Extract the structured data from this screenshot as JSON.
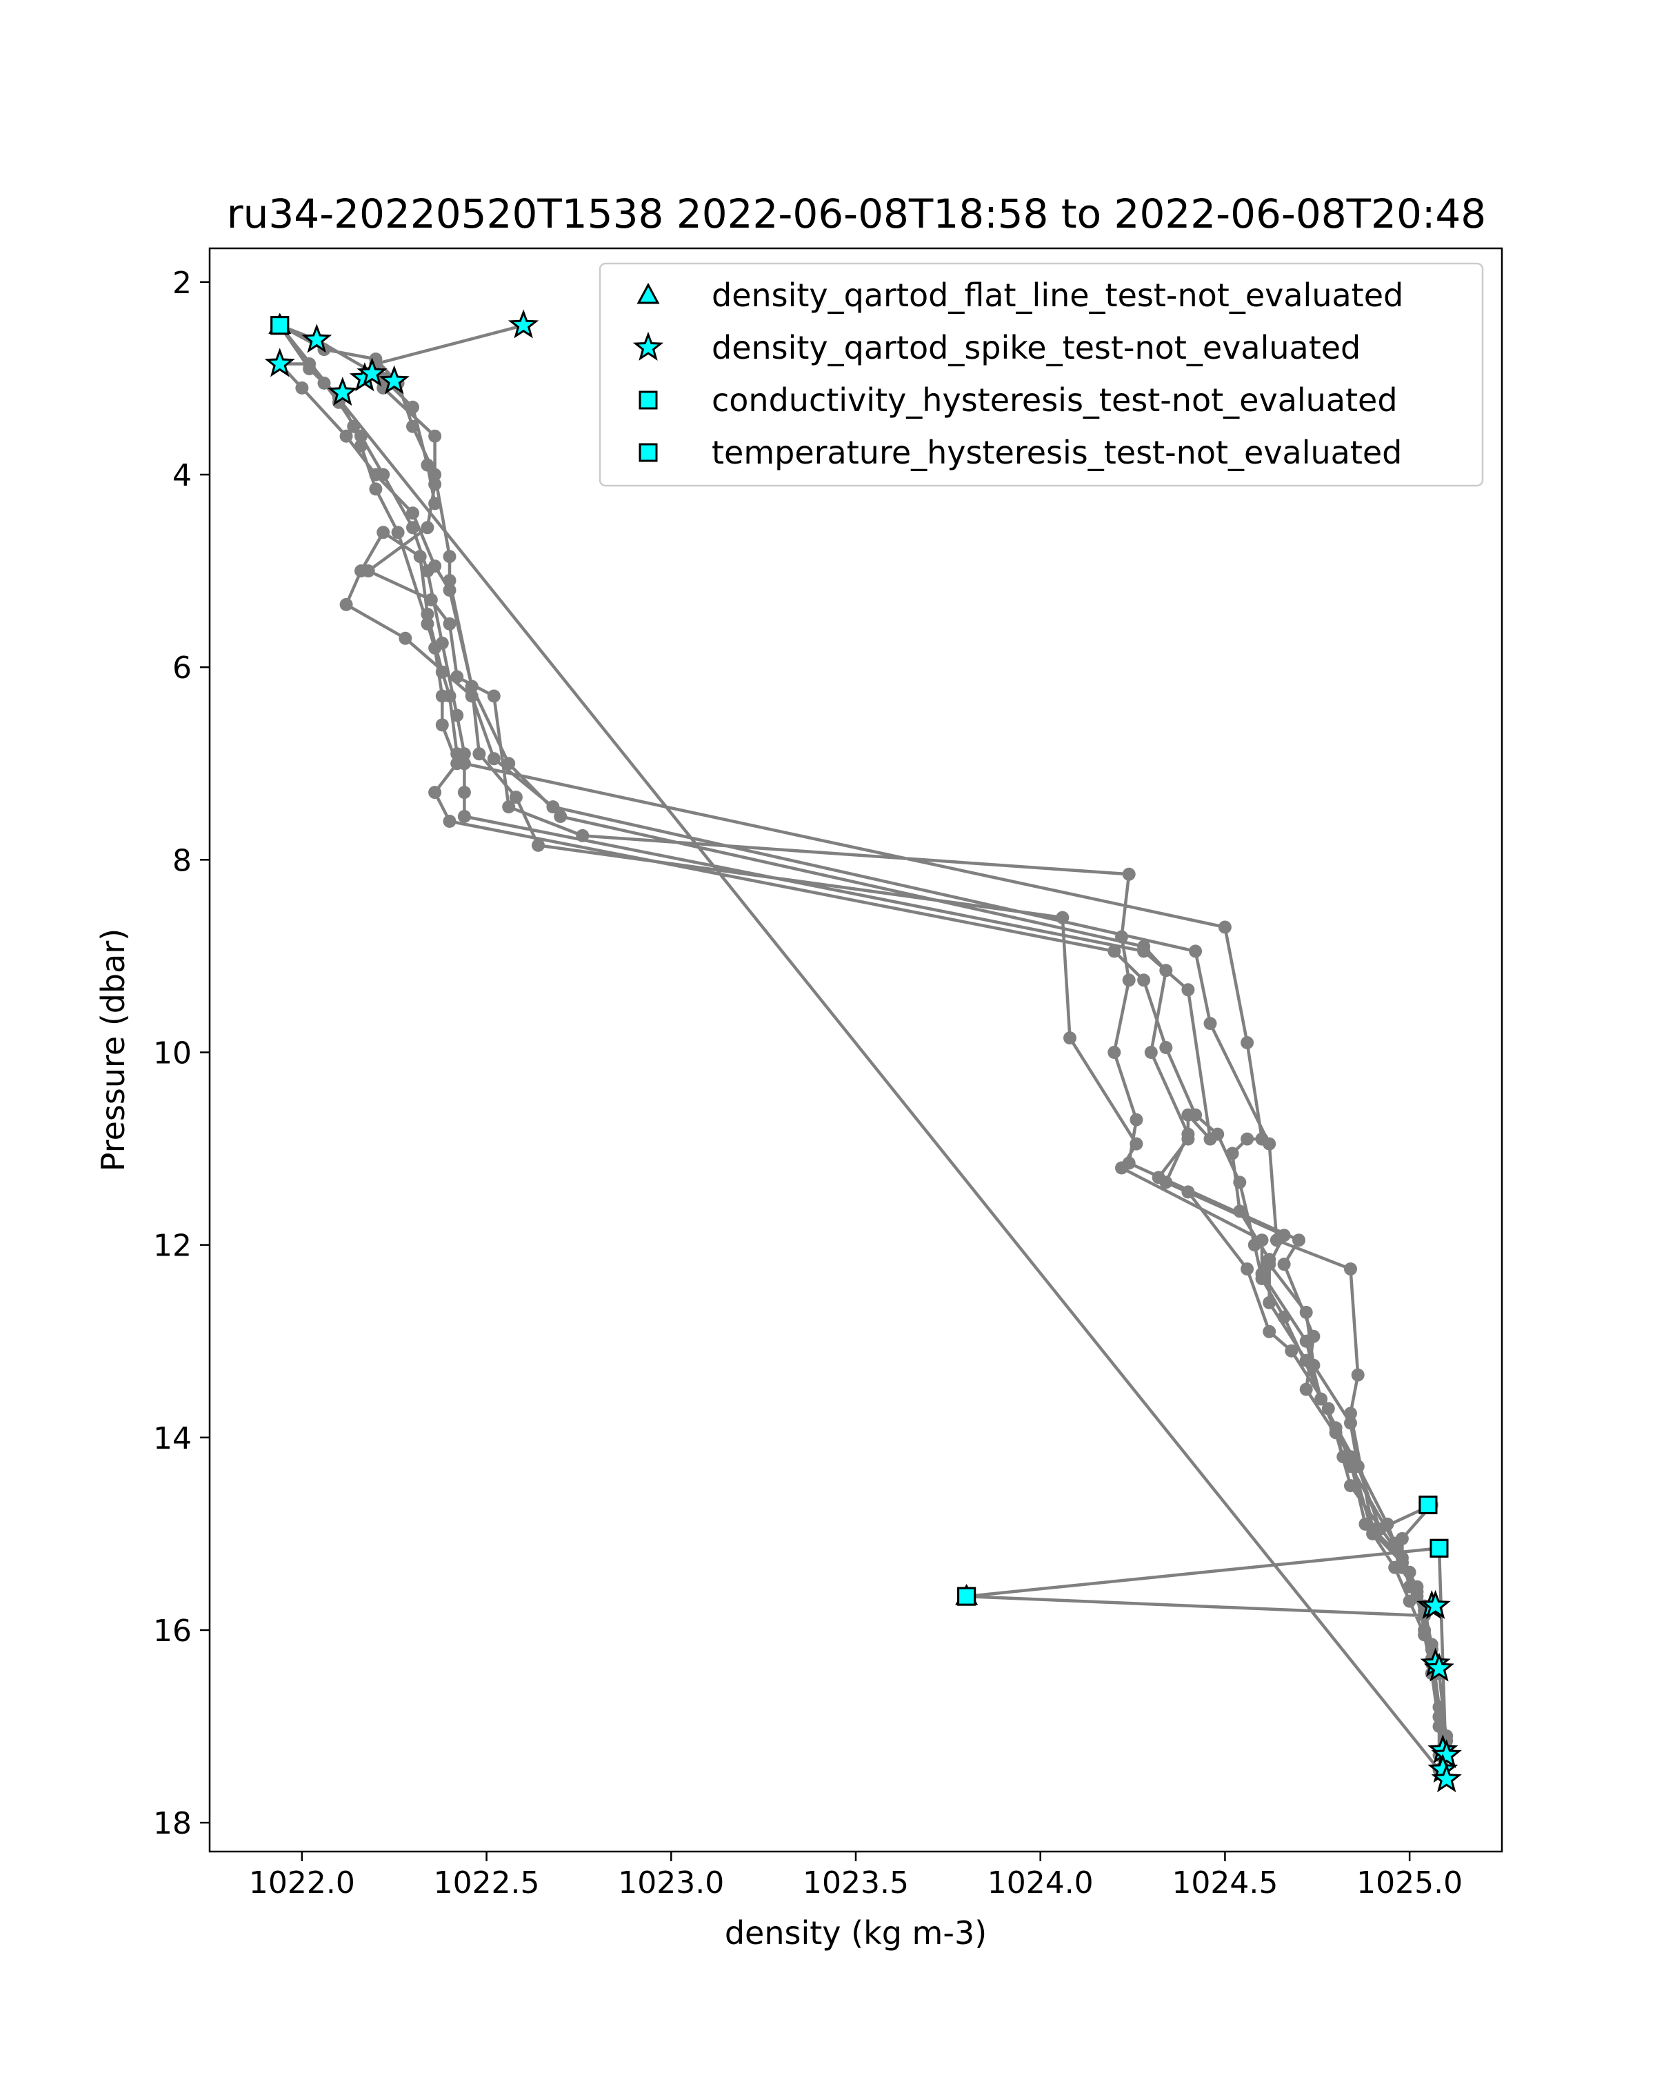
{
  "chart_data": {
    "type": "scatter",
    "title": "ru34-20220520T1538 2022-06-08T18:58 to 2022-06-08T20:48",
    "xlabel": "density (kg m-3)",
    "ylabel": "Pressure (dbar)",
    "xlim": [
      1021.75,
      1025.25
    ],
    "ylim": [
      18.3,
      1.65
    ],
    "y_inverted": true,
    "x_ticks": [
      1022.0,
      1022.5,
      1023.0,
      1023.5,
      1024.0,
      1024.5,
      1025.0
    ],
    "x_tick_labels": [
      "1022.0",
      "1022.5",
      "1023.0",
      "1023.5",
      "1024.0",
      "1024.5",
      "1025.0"
    ],
    "y_ticks": [
      2,
      4,
      6,
      8,
      10,
      12,
      14,
      16,
      18
    ],
    "y_tick_labels": [
      "2",
      "4",
      "6",
      "8",
      "10",
      "12",
      "14",
      "16",
      "18"
    ],
    "grid": false,
    "legend_position": "top-right",
    "colors": {
      "profile": "#808080",
      "flag_fill": "#00ffff",
      "flag_edge": "#000000"
    },
    "profile_series": {
      "points": [
        [
          1022.6,
          2.45
        ],
        [
          1022.2,
          2.85
        ],
        [
          1022.18,
          2.95
        ],
        [
          1022.22,
          3.1
        ],
        [
          1022.36,
          3.6
        ],
        [
          1022.36,
          4.1
        ],
        [
          1022.34,
          4.55
        ],
        [
          1022.18,
          5.0
        ],
        [
          1022.35,
          5.3
        ],
        [
          1022.4,
          5.55
        ],
        [
          1022.42,
          6.1
        ],
        [
          1022.52,
          6.3
        ],
        [
          1022.56,
          7.45
        ],
        [
          1022.76,
          7.75
        ],
        [
          1024.24,
          8.15
        ],
        [
          1024.22,
          8.8
        ],
        [
          1024.24,
          9.25
        ],
        [
          1024.2,
          10.0
        ],
        [
          1024.26,
          10.7
        ],
        [
          1024.24,
          11.15
        ],
        [
          1024.7,
          11.95
        ],
        [
          1024.66,
          12.2
        ],
        [
          1024.74,
          12.95
        ],
        [
          1024.72,
          13.5
        ],
        [
          1024.84,
          14.2
        ],
        [
          1024.9,
          15.0
        ],
        [
          1024.96,
          15.35
        ],
        [
          1025.0,
          15.7
        ],
        [
          1025.04,
          16.05
        ],
        [
          1025.06,
          16.45
        ],
        [
          1025.08,
          17.0
        ],
        [
          1025.1,
          17.3
        ],
        [
          1025.1,
          17.55
        ],
        [
          1025.08,
          17.3
        ],
        [
          1025.08,
          16.9
        ],
        [
          1025.06,
          16.35
        ],
        [
          1025.04,
          16.0
        ],
        [
          1025.02,
          15.65
        ],
        [
          1024.98,
          15.3
        ],
        [
          1024.96,
          15.1
        ],
        [
          1024.84,
          14.3
        ],
        [
          1024.82,
          14.2
        ],
        [
          1024.78,
          13.7
        ],
        [
          1024.68,
          13.1
        ],
        [
          1024.62,
          12.9
        ],
        [
          1024.56,
          12.25
        ],
        [
          1024.4,
          11.45
        ],
        [
          1024.32,
          11.3
        ],
        [
          1024.4,
          10.9
        ],
        [
          1024.4,
          10.65
        ],
        [
          1024.46,
          10.9
        ],
        [
          1024.4,
          9.35
        ],
        [
          1024.28,
          8.95
        ],
        [
          1022.44,
          7.55
        ],
        [
          1022.44,
          7.3
        ],
        [
          1022.44,
          6.9
        ],
        [
          1022.42,
          6.5
        ],
        [
          1022.38,
          5.75
        ],
        [
          1022.34,
          5.0
        ],
        [
          1022.3,
          4.55
        ],
        [
          1022.22,
          4.0
        ],
        [
          1022.16,
          3.6
        ],
        [
          1022.1,
          3.25
        ],
        [
          1022.06,
          3.05
        ],
        [
          1022.02,
          2.85
        ],
        [
          1021.94,
          2.85
        ],
        [
          1022.0,
          3.1
        ],
        [
          1022.12,
          3.6
        ],
        [
          1022.2,
          4.0
        ],
        [
          1022.3,
          4.4
        ],
        [
          1022.36,
          4.95
        ],
        [
          1022.4,
          5.2
        ],
        [
          1022.46,
          6.2
        ],
        [
          1022.48,
          6.9
        ],
        [
          1022.58,
          7.35
        ],
        [
          1022.64,
          7.85
        ],
        [
          1024.06,
          8.6
        ],
        [
          1024.08,
          9.85
        ],
        [
          1024.26,
          10.95
        ],
        [
          1024.22,
          11.2
        ],
        [
          1024.6,
          11.95
        ],
        [
          1024.6,
          12.3
        ],
        [
          1024.72,
          13.0
        ],
        [
          1024.76,
          13.6
        ],
        [
          1024.86,
          14.3
        ],
        [
          1024.92,
          14.95
        ],
        [
          1025.06,
          14.7
        ],
        [
          1024.98,
          15.05
        ],
        [
          1024.98,
          15.35
        ],
        [
          1025.04,
          15.8
        ],
        [
          1025.06,
          16.15
        ],
        [
          1025.08,
          16.4
        ],
        [
          1025.06,
          16.45
        ],
        [
          1025.1,
          17.1
        ],
        [
          1025.08,
          17.45
        ],
        [
          1025.1,
          17.3
        ],
        [
          1025.08,
          16.9
        ],
        [
          1025.06,
          16.3
        ],
        [
          1025.02,
          15.6
        ],
        [
          1024.98,
          15.3
        ],
        [
          1024.88,
          14.9
        ],
        [
          1024.84,
          14.25
        ],
        [
          1024.8,
          13.9
        ],
        [
          1024.66,
          12.75
        ],
        [
          1024.6,
          12.35
        ],
        [
          1024.58,
          12.0
        ],
        [
          1024.54,
          11.35
        ],
        [
          1024.48,
          10.85
        ],
        [
          1024.42,
          10.65
        ],
        [
          1024.34,
          9.95
        ],
        [
          1024.28,
          9.25
        ],
        [
          1024.2,
          8.95
        ],
        [
          1022.4,
          7.6
        ],
        [
          1022.36,
          7.3
        ],
        [
          1022.42,
          7.0
        ],
        [
          1022.38,
          6.6
        ],
        [
          1022.38,
          6.3
        ],
        [
          1022.36,
          5.8
        ],
        [
          1022.34,
          5.55
        ],
        [
          1022.26,
          4.6
        ],
        [
          1022.2,
          4.15
        ],
        [
          1022.16,
          3.7
        ],
        [
          1022.14,
          3.5
        ],
        [
          1022.1,
          3.2
        ],
        [
          1022.02,
          2.9
        ],
        [
          1021.94,
          2.45
        ],
        [
          1022.06,
          2.7
        ],
        [
          1022.2,
          2.8
        ],
        [
          1022.26,
          3.05
        ],
        [
          1022.3,
          3.5
        ],
        [
          1022.36,
          4.0
        ],
        [
          1022.4,
          4.85
        ],
        [
          1022.4,
          5.1
        ],
        [
          1022.46,
          6.2
        ],
        [
          1022.56,
          7.0
        ],
        [
          1022.7,
          7.55
        ],
        [
          1024.28,
          8.9
        ],
        [
          1024.34,
          9.15
        ],
        [
          1024.3,
          10.0
        ],
        [
          1024.4,
          10.85
        ],
        [
          1024.34,
          11.35
        ],
        [
          1024.66,
          11.9
        ],
        [
          1024.62,
          12.2
        ],
        [
          1024.72,
          12.7
        ],
        [
          1024.74,
          13.25
        ],
        [
          1024.84,
          13.85
        ],
        [
          1024.86,
          14.3
        ],
        [
          1024.94,
          14.9
        ],
        [
          1024.96,
          15.1
        ],
        [
          1025.0,
          15.4
        ],
        [
          1025.04,
          15.75
        ],
        [
          1025.06,
          16.2
        ],
        [
          1025.08,
          16.45
        ],
        [
          1025.1,
          17.15
        ],
        [
          1025.08,
          16.8
        ],
        [
          1025.06,
          16.2
        ],
        [
          1025.02,
          15.55
        ],
        [
          1024.96,
          15.15
        ],
        [
          1024.84,
          14.5
        ],
        [
          1024.8,
          13.95
        ],
        [
          1024.72,
          13.2
        ],
        [
          1024.62,
          12.6
        ],
        [
          1024.62,
          12.15
        ],
        [
          1024.54,
          11.65
        ],
        [
          1024.52,
          11.05
        ],
        [
          1024.56,
          10.9
        ],
        [
          1024.6,
          10.9
        ],
        [
          1024.56,
          9.9
        ],
        [
          1024.5,
          8.7
        ],
        [
          1022.44,
          7.0
        ],
        [
          1022.42,
          6.9
        ],
        [
          1022.4,
          6.3
        ],
        [
          1022.38,
          6.05
        ],
        [
          1022.34,
          5.45
        ],
        [
          1022.32,
          4.85
        ],
        [
          1022.22,
          4.6
        ],
        [
          1022.16,
          5.0
        ],
        [
          1022.12,
          5.35
        ],
        [
          1022.28,
          5.7
        ],
        [
          1022.46,
          6.3
        ],
        [
          1022.52,
          6.95
        ],
        [
          1022.68,
          7.45
        ],
        [
          1024.42,
          8.95
        ],
        [
          1024.46,
          9.7
        ],
        [
          1024.62,
          10.95
        ],
        [
          1024.64,
          11.95
        ],
        [
          1024.84,
          12.25
        ],
        [
          1024.86,
          13.35
        ],
        [
          1024.84,
          13.75
        ],
        [
          1024.9,
          14.95
        ],
        [
          1024.98,
          15.25
        ],
        [
          1025.0,
          15.55
        ],
        [
          1025.04,
          15.85
        ],
        [
          1023.8,
          15.65
        ],
        [
          1025.08,
          15.15
        ],
        [
          1025.1,
          17.55
        ],
        [
          1021.94,
          2.45
        ],
        [
          1022.04,
          2.6
        ],
        [
          1022.22,
          3.0
        ],
        [
          1022.3,
          3.3
        ],
        [
          1022.34,
          3.9
        ],
        [
          1022.36,
          4.3
        ]
      ]
    },
    "flags": [
      {
        "name": "density_qartod_flat_line_test-not_evaluated",
        "marker": "triangle",
        "points": [
          [
            1021.94,
            2.45
          ],
          [
            1023.8,
            15.65
          ]
        ]
      },
      {
        "name": "density_qartod_spike_test-not_evaluated",
        "marker": "star",
        "points": [
          [
            1022.6,
            2.45
          ],
          [
            1022.04,
            2.6
          ],
          [
            1021.94,
            2.85
          ],
          [
            1022.11,
            3.15
          ],
          [
            1022.17,
            3.0
          ],
          [
            1022.19,
            2.95
          ],
          [
            1022.25,
            3.03
          ],
          [
            1025.06,
            15.75
          ],
          [
            1025.07,
            15.75
          ],
          [
            1025.07,
            16.35
          ],
          [
            1025.08,
            16.4
          ],
          [
            1025.09,
            17.25
          ],
          [
            1025.1,
            17.3
          ],
          [
            1025.09,
            17.45
          ],
          [
            1025.1,
            17.55
          ]
        ]
      },
      {
        "name": "conductivity_hysteresis_test-not_evaluated",
        "marker": "square",
        "points": [
          [
            1021.94,
            2.45
          ],
          [
            1023.8,
            15.65
          ],
          [
            1025.05,
            14.7
          ],
          [
            1025.08,
            15.15
          ]
        ]
      },
      {
        "name": "temperature_hysteresis_test-not_evaluated",
        "marker": "square",
        "points": [
          [
            1021.94,
            2.45
          ],
          [
            1023.8,
            15.65
          ],
          [
            1025.05,
            14.7
          ],
          [
            1025.08,
            15.15
          ]
        ]
      }
    ]
  }
}
